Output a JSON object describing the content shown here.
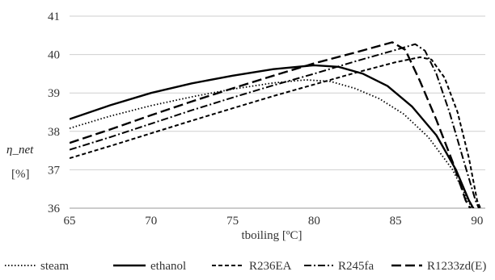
{
  "chart_data": {
    "type": "line",
    "xlabel": "tboiling [ºC]",
    "ylabel": "η_net",
    "yunit": "[%]",
    "xlim": [
      65,
      90.5
    ],
    "ylim": [
      36,
      41
    ],
    "xticks": [
      "65",
      "70",
      "75",
      "80",
      "85",
      "90"
    ],
    "yticks": [
      "36",
      "37",
      "38",
      "39",
      "40",
      "41"
    ],
    "grid": "horizontal",
    "legend_position": "bottom",
    "series": [
      {
        "name": "steam",
        "style": "dotted",
        "color": "#000000",
        "points": [
          [
            65,
            38.08
          ],
          [
            67.5,
            38.4
          ],
          [
            70,
            38.67
          ],
          [
            72.5,
            38.9
          ],
          [
            75,
            39.1
          ],
          [
            77.5,
            39.26
          ],
          [
            79.5,
            39.34
          ],
          [
            81,
            39.3
          ],
          [
            82.5,
            39.12
          ],
          [
            84,
            38.85
          ],
          [
            85.5,
            38.45
          ],
          [
            87,
            37.85
          ],
          [
            88.5,
            37.0
          ],
          [
            89.5,
            36.15
          ],
          [
            89.8,
            35.9
          ]
        ]
      },
      {
        "name": "ethanol",
        "style": "solid",
        "color": "#000000",
        "points": [
          [
            65,
            38.32
          ],
          [
            67.5,
            38.68
          ],
          [
            70,
            39.0
          ],
          [
            72.5,
            39.25
          ],
          [
            75,
            39.45
          ],
          [
            77.5,
            39.62
          ],
          [
            80,
            39.72
          ],
          [
            81.5,
            39.68
          ],
          [
            83,
            39.5
          ],
          [
            84.5,
            39.18
          ],
          [
            86,
            38.65
          ],
          [
            87.5,
            37.9
          ],
          [
            88.7,
            37.0
          ],
          [
            89.5,
            36.2
          ],
          [
            89.9,
            35.9
          ]
        ]
      },
      {
        "name": "R236EA",
        "style": "dashed",
        "color": "#000000",
        "points": [
          [
            65,
            37.3
          ],
          [
            67.5,
            37.62
          ],
          [
            70,
            37.95
          ],
          [
            72.5,
            38.28
          ],
          [
            75,
            38.6
          ],
          [
            77.5,
            38.92
          ],
          [
            80,
            39.22
          ],
          [
            82.5,
            39.52
          ],
          [
            85,
            39.8
          ],
          [
            86.5,
            39.93
          ],
          [
            87.2,
            39.87
          ],
          [
            88,
            39.4
          ],
          [
            88.8,
            38.5
          ],
          [
            89.5,
            37.3
          ],
          [
            90,
            36.2
          ],
          [
            90.3,
            35.9
          ]
        ]
      },
      {
        "name": "R245fa",
        "style": "dashdot",
        "color": "#000000",
        "points": [
          [
            65,
            37.52
          ],
          [
            67.5,
            37.85
          ],
          [
            70,
            38.2
          ],
          [
            72.5,
            38.55
          ],
          [
            75,
            38.88
          ],
          [
            77.5,
            39.2
          ],
          [
            80,
            39.5
          ],
          [
            82.5,
            39.82
          ],
          [
            85,
            40.12
          ],
          [
            86.2,
            40.27
          ],
          [
            86.8,
            40.1
          ],
          [
            87.5,
            39.5
          ],
          [
            88.3,
            38.5
          ],
          [
            89.2,
            37.2
          ],
          [
            89.9,
            36.2
          ],
          [
            90.2,
            35.9
          ]
        ]
      },
      {
        "name": "R1233zd(E)",
        "style": "longdash",
        "color": "#000000",
        "points": [
          [
            65,
            37.7
          ],
          [
            67.5,
            38.05
          ],
          [
            70,
            38.42
          ],
          [
            72.5,
            38.78
          ],
          [
            75,
            39.12
          ],
          [
            77.5,
            39.45
          ],
          [
            80,
            39.77
          ],
          [
            82.5,
            40.05
          ],
          [
            84.8,
            40.32
          ],
          [
            85.6,
            40.12
          ],
          [
            86.5,
            39.3
          ],
          [
            87.5,
            38.3
          ],
          [
            88.5,
            37.2
          ],
          [
            89.3,
            36.2
          ],
          [
            89.7,
            35.9
          ]
        ]
      }
    ]
  }
}
